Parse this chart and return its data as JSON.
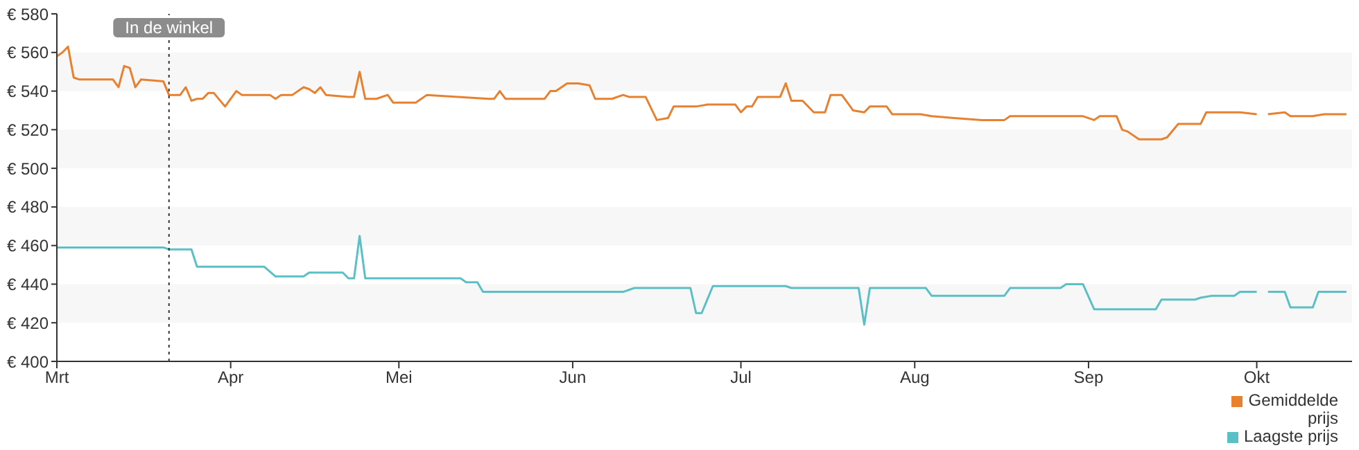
{
  "chart_data": {
    "type": "line",
    "xlim": [
      "--03-01",
      "--10-18"
    ],
    "xticks": [
      {
        "value": "--03-01",
        "label": "Mrt"
      },
      {
        "value": "--04-01",
        "label": "Apr"
      },
      {
        "value": "--05-01",
        "label": "Mei"
      },
      {
        "value": "--06-01",
        "label": "Jun"
      },
      {
        "value": "--07-01",
        "label": "Jul"
      },
      {
        "value": "--08-01",
        "label": "Aug"
      },
      {
        "value": "--09-01",
        "label": "Sep"
      },
      {
        "value": "--10-01",
        "label": "Okt"
      }
    ],
    "ylim": [
      400,
      580
    ],
    "yticks": [
      {
        "value": 400,
        "label": "€ 400"
      },
      {
        "value": 420,
        "label": "€ 420"
      },
      {
        "value": 440,
        "label": "€ 440"
      },
      {
        "value": 460,
        "label": "€ 460"
      },
      {
        "value": 480,
        "label": "€ 480"
      },
      {
        "value": 500,
        "label": "€ 500"
      },
      {
        "value": 520,
        "label": "€ 520"
      },
      {
        "value": 540,
        "label": "€ 540"
      },
      {
        "value": 560,
        "label": "€ 560"
      },
      {
        "value": 580,
        "label": "€ 580"
      }
    ],
    "legend": "bottom right",
    "bands": [
      {
        "axis": "y",
        "from": 540,
        "to": 560,
        "color": "#f7f7f7"
      },
      {
        "axis": "y",
        "from": 500,
        "to": 520,
        "color": "#f7f7f7"
      },
      {
        "axis": "y",
        "from": 460,
        "to": 480,
        "color": "#f7f7f7"
      },
      {
        "axis": "y",
        "from": 420,
        "to": 440,
        "color": "#f7f7f7"
      }
    ],
    "marker": "none",
    "line_style": "solid",
    "ref_lines": [
      {
        "axis": "x",
        "value": "--03-21",
        "label": "In de winkel",
        "color": "#333333",
        "line_style": "dotted"
      }
    ],
    "series": [
      {
        "name": "Gemiddelde prijs",
        "color": "#e8812f",
        "x": [
          "--03-01",
          "--03-02",
          "--03-03",
          "--03-04",
          "--03-05",
          "--03-11",
          "--03-12",
          "--03-13",
          "--03-14",
          "--03-15",
          "--03-16",
          "--03-20",
          "--03-21",
          "--03-23",
          "--03-24",
          "--03-25",
          "--03-26",
          "--03-27",
          "--03-28",
          "--03-29",
          "--03-31",
          "--04-02",
          "--04-03",
          "--04-08",
          "--04-09",
          "--04-10",
          "--04-12",
          "--04-14",
          "--04-15",
          "--04-16",
          "--04-17",
          "--04-18",
          "--04-22",
          "--04-23",
          "--04-24",
          "--04-25",
          "--04-27",
          "--04-29",
          "--04-30",
          "--05-04",
          "--05-06",
          "--05-17",
          "--05-18",
          "--05-19",
          "--05-20",
          "--05-27",
          "--05-28",
          "--05-29",
          "--05-31",
          "--06-02",
          "--06-04",
          "--06-05",
          "--06-08",
          "--06-10",
          "--06-11",
          "--06-14",
          "--06-16",
          "--06-18",
          "--06-19",
          "--06-23",
          "--06-25",
          "--06-30",
          "--07-01",
          "--07-02",
          "--07-03",
          "--07-04",
          "--07-08",
          "--07-09",
          "--07-10",
          "--07-12",
          "--07-14",
          "--07-16",
          "--07-17",
          "--07-19",
          "--07-21",
          "--07-23",
          "--07-24",
          "--07-27",
          "--07-28",
          "--08-02",
          "--08-04",
          "--08-08",
          "--08-13",
          "--08-17",
          "--08-18",
          "--08-31",
          "--09-02",
          "--09-03",
          "--09-06",
          "--09-07",
          "--09-08",
          "--09-10",
          "--09-14",
          "--09-15",
          "--09-17",
          "--09-21",
          "--09-22",
          "--09-28",
          "--10-01",
          "--10-02",
          "--10-03",
          "--10-06",
          "--10-07",
          "--10-11",
          "--10-13",
          "--10-17"
        ],
        "values": [
          558,
          560,
          563,
          547,
          546,
          546,
          542,
          553,
          552,
          542,
          546,
          545,
          538,
          538,
          542,
          535,
          536,
          536,
          539,
          539,
          532,
          540,
          538,
          538,
          536,
          538,
          538,
          542,
          541,
          539,
          542,
          538,
          537,
          537,
          550,
          536,
          536,
          538,
          534,
          534,
          538,
          536,
          536,
          540,
          536,
          536,
          540,
          540,
          544,
          544,
          543,
          536,
          536,
          538,
          537,
          537,
          525,
          526,
          532,
          532,
          533,
          533,
          529,
          532,
          532,
          537,
          537,
          544,
          535,
          535,
          529,
          529,
          538,
          538,
          530,
          529,
          532,
          532,
          528,
          528,
          527,
          526,
          525,
          525,
          527,
          527,
          525,
          527,
          527,
          520,
          519,
          515,
          515,
          516,
          523,
          523,
          529,
          529,
          528,
          null,
          528,
          529,
          527,
          527,
          528,
          528
        ]
      },
      {
        "name": "Laagste prijs",
        "color": "#5bbfc6",
        "x": [
          "--03-01",
          "--03-20",
          "--03-21",
          "--03-25",
          "--03-26",
          "--04-07",
          "--04-09",
          "--04-14",
          "--04-15",
          "--04-21",
          "--04-22",
          "--04-23",
          "--04-24",
          "--04-25",
          "--05-12",
          "--05-13",
          "--05-15",
          "--05-16",
          "--06-10",
          "--06-12",
          "--06-22",
          "--06-23",
          "--06-24",
          "--06-26",
          "--07-09",
          "--07-10",
          "--07-22",
          "--07-23",
          "--07-24",
          "--08-03",
          "--08-04",
          "--08-17",
          "--08-18",
          "--08-27",
          "--08-28",
          "--08-31",
          "--09-02",
          "--09-13",
          "--09-14",
          "--09-20",
          "--09-21",
          "--09-23",
          "--09-27",
          "--09-28",
          "--10-01",
          "--10-02",
          "--10-03",
          "--10-06",
          "--10-07",
          "--10-11",
          "--10-12",
          "--10-17"
        ],
        "values": [
          459,
          459,
          458,
          458,
          449,
          449,
          444,
          444,
          446,
          446,
          443,
          443,
          465,
          443,
          443,
          441,
          441,
          436,
          436,
          438,
          438,
          425,
          425,
          439,
          439,
          438,
          438,
          419,
          438,
          438,
          434,
          434,
          438,
          438,
          440,
          440,
          427,
          427,
          432,
          432,
          433,
          434,
          434,
          436,
          436,
          null,
          436,
          436,
          428,
          428,
          436,
          436
        ]
      }
    ]
  }
}
